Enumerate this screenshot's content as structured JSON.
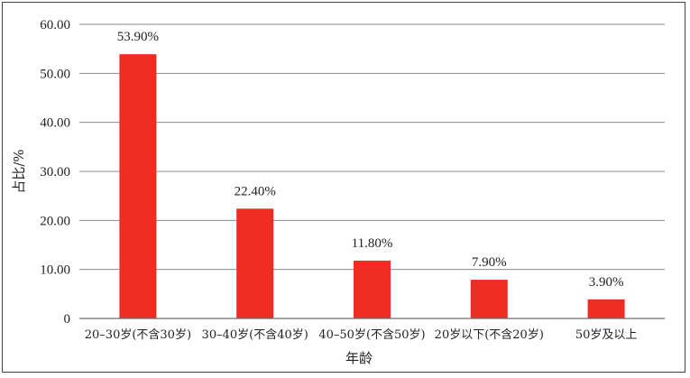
{
  "chart_data": {
    "type": "bar",
    "categories": [
      "20–30岁(不含30岁)",
      "30–40岁(不含40岁)",
      "40–50岁(不含50岁)",
      "20岁以下(不含20岁)",
      "50岁及以上"
    ],
    "values": [
      53.9,
      22.4,
      11.8,
      7.9,
      3.9
    ],
    "data_labels": [
      "53.90%",
      "22.40%",
      "11.80%",
      "7.90%",
      "3.90%"
    ],
    "y_ticks": [
      "0",
      "10.00",
      "20.00",
      "30.00",
      "40.00",
      "50.00",
      "60.00"
    ],
    "ylim": [
      0,
      60
    ],
    "xlabel": "年龄",
    "ylabel": "占比/%",
    "bar_color": "#ee2c24",
    "grid": true,
    "legend": "none"
  }
}
